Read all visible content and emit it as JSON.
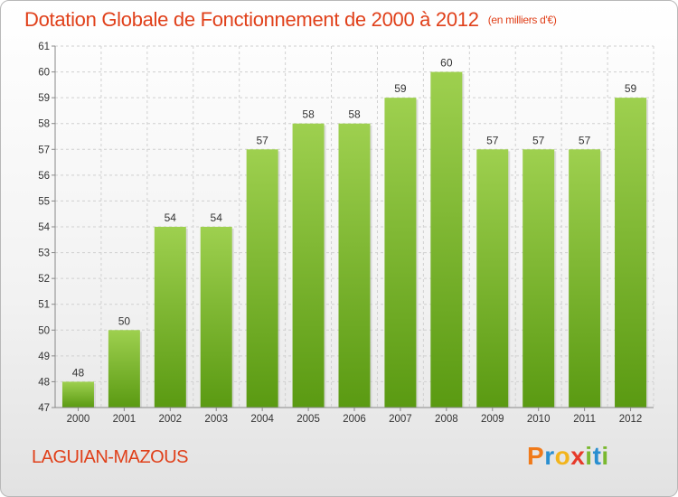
{
  "title": "Dotation Globale de Fonctionnement de 2000 à 2012",
  "unit_label": "(en milliers d'€)",
  "commune": "LAGUIAN-MAZOUS",
  "logo": {
    "letters": [
      "P",
      "r",
      "o",
      "x",
      "i",
      "t",
      "i"
    ],
    "colors": [
      "#f07a1a",
      "#2a8fd0",
      "#f2b41c",
      "#e63a2a",
      "#7ab830",
      "#2a8fd0",
      "#7ab830"
    ]
  },
  "colors": {
    "bar_top": "#9ed04f",
    "bar_bottom": "#5a9a12",
    "title": "#e0401a"
  },
  "chart_data": {
    "type": "bar",
    "title": "Dotation Globale de Fonctionnement de 2000 à 2012",
    "subtitle": "(en milliers d'€)",
    "categories": [
      "2000",
      "2001",
      "2002",
      "2003",
      "2004",
      "2005",
      "2006",
      "2007",
      "2008",
      "2009",
      "2010",
      "2011",
      "2012"
    ],
    "values": [
      48,
      50,
      54,
      54,
      57,
      58,
      58,
      59,
      60,
      57,
      57,
      57,
      59
    ],
    "ylim": [
      47,
      61
    ],
    "yticks": [
      47,
      48,
      49,
      50,
      51,
      52,
      53,
      54,
      55,
      56,
      57,
      58,
      59,
      60,
      61
    ],
    "grid": true,
    "xlabel": "",
    "ylabel": ""
  }
}
